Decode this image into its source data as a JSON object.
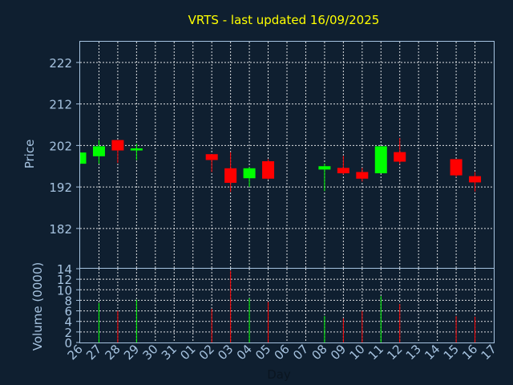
{
  "chart_data": [
    {
      "type": "candlestick",
      "title": "VRTS - last updated 16/09/2025",
      "ylabel": "Price",
      "ylim": [
        172.5,
        227
      ],
      "yticks": [
        182,
        192,
        202,
        212,
        222
      ],
      "grid": true,
      "x_labels": [
        "26",
        "27",
        "28",
        "29",
        "30",
        "31",
        "01",
        "02",
        "03",
        "04",
        "05",
        "06",
        "07",
        "08",
        "09",
        "10",
        "11",
        "12",
        "13",
        "14",
        "15",
        "16",
        "17"
      ],
      "ohlc": [
        {
          "x": "26",
          "open": 197.6,
          "high": 200.3,
          "low": 197.6,
          "close": 200.3
        },
        {
          "x": "27",
          "open": 199.4,
          "high": 203.3,
          "low": 197.6,
          "close": 201.8
        },
        {
          "x": "28",
          "open": 203.3,
          "high": 203.3,
          "low": 197.8,
          "close": 200.8
        },
        {
          "x": "29",
          "open": 200.8,
          "high": 202.4,
          "low": 198.5,
          "close": 201.3
        },
        {
          "x": "02",
          "open": 199.9,
          "high": 199.9,
          "low": 195.6,
          "close": 198.5
        },
        {
          "x": "03",
          "open": 196.5,
          "high": 200.4,
          "low": 190.8,
          "close": 193.0
        },
        {
          "x": "04",
          "open": 194.1,
          "high": 196.8,
          "low": 192.0,
          "close": 196.5
        },
        {
          "x": "05",
          "open": 198.2,
          "high": 198.7,
          "low": 193.8,
          "close": 194.0
        },
        {
          "x": "08",
          "open": 196.2,
          "high": 197.6,
          "low": 191.0,
          "close": 197.0
        },
        {
          "x": "09",
          "open": 196.6,
          "high": 199.5,
          "low": 195.0,
          "close": 195.3
        },
        {
          "x": "10",
          "open": 195.6,
          "high": 196.6,
          "low": 193.3,
          "close": 194.0
        },
        {
          "x": "11",
          "open": 195.3,
          "high": 201.8,
          "low": 195.3,
          "close": 201.8
        },
        {
          "x": "12",
          "open": 200.4,
          "high": 203.8,
          "low": 197.5,
          "close": 198.1
        },
        {
          "x": "15",
          "open": 198.7,
          "high": 198.7,
          "low": 194.4,
          "close": 194.8
        },
        {
          "x": "16",
          "open": 194.6,
          "high": 195.6,
          "low": 190.9,
          "close": 193.1
        }
      ],
      "colors": {
        "up": "#00ff00",
        "down": "#ff0000"
      }
    },
    {
      "type": "bar",
      "ylabel": "Volume (0000)",
      "xlabel": "Day",
      "ylim": [
        0,
        14
      ],
      "yticks": [
        0,
        2,
        4,
        6,
        8,
        10,
        12,
        14
      ],
      "grid": true,
      "x_labels": [
        "26",
        "27",
        "28",
        "29",
        "30",
        "31",
        "01",
        "02",
        "03",
        "04",
        "05",
        "06",
        "07",
        "08",
        "09",
        "10",
        "11",
        "12",
        "13",
        "14",
        "15",
        "16",
        "17"
      ],
      "volume": [
        {
          "x": "27",
          "value": 7.5,
          "direction": "up"
        },
        {
          "x": "28",
          "value": 6.0,
          "direction": "down"
        },
        {
          "x": "29",
          "value": 8.1,
          "direction": "up"
        },
        {
          "x": "02",
          "value": 6.4,
          "direction": "down"
        },
        {
          "x": "03",
          "value": 13.6,
          "direction": "down"
        },
        {
          "x": "04",
          "value": 8.4,
          "direction": "up"
        },
        {
          "x": "05",
          "value": 7.7,
          "direction": "down"
        },
        {
          "x": "08",
          "value": 5.0,
          "direction": "up"
        },
        {
          "x": "09",
          "value": 4.6,
          "direction": "down"
        },
        {
          "x": "10",
          "value": 6.0,
          "direction": "down"
        },
        {
          "x": "11",
          "value": 8.8,
          "direction": "up"
        },
        {
          "x": "12",
          "value": 7.3,
          "direction": "down"
        },
        {
          "x": "15",
          "value": 5.0,
          "direction": "down"
        },
        {
          "x": "16",
          "value": 4.9,
          "direction": "down"
        }
      ]
    }
  ]
}
